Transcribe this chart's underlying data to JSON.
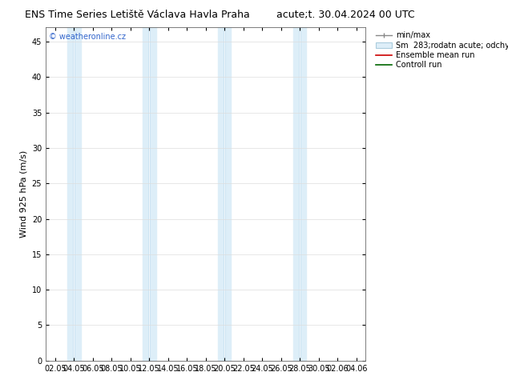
{
  "title_left": "ENS Time Series Letiště Václava Havla Praha",
  "title_right": "acute;t. 30.04.2024 00 UTC",
  "ylabel": "Wind 925 hPa (m/s)",
  "watermark": "© weatheronline.cz",
  "ylim": [
    0,
    47
  ],
  "yticks": [
    0,
    5,
    10,
    15,
    20,
    25,
    30,
    35,
    40,
    45
  ],
  "xtick_labels": [
    "02.05",
    "04.05",
    "06.05",
    "08.05",
    "10.05",
    "12.05",
    "14.05",
    "16.05",
    "18.05",
    "20.05",
    "22.05",
    "24.05",
    "26.05",
    "28.05",
    "30.05",
    "02.06",
    "04.06"
  ],
  "n_xticks": 17,
  "band_color_light": "#ddeef8",
  "band_color_dark": "#c5dff0",
  "background_color": "#ffffff",
  "title_fontsize": 9,
  "axis_fontsize": 8,
  "tick_fontsize": 7,
  "watermark_color": "#3366cc",
  "legend_fontsize": 7
}
